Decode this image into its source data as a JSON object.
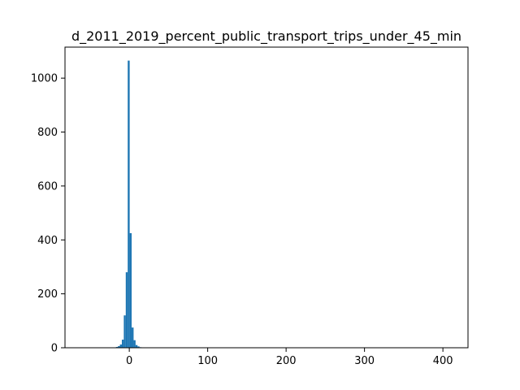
{
  "chart_data": {
    "type": "bar",
    "title": "d_2011_2019_percent_public_transport_trips_under_45_min",
    "xlabel": "",
    "ylabel": "",
    "xlim": [
      -82,
      432
    ],
    "ylim": [
      0,
      1115
    ],
    "x_ticks": [
      0,
      100,
      200,
      300,
      400
    ],
    "x_tick_labels": [
      "0",
      "100",
      "200",
      "300",
      "400"
    ],
    "y_ticks": [
      0,
      200,
      400,
      600,
      800,
      1000
    ],
    "y_tick_labels": [
      "0",
      "200",
      "400",
      "600",
      "800",
      "1000"
    ],
    "bin_width": 2.5,
    "bins": [
      {
        "x0": -17,
        "count": 3
      },
      {
        "x0": -14.5,
        "count": 6
      },
      {
        "x0": -12,
        "count": 12
      },
      {
        "x0": -9.5,
        "count": 30
      },
      {
        "x0": -7,
        "count": 120
      },
      {
        "x0": -4.5,
        "count": 280
      },
      {
        "x0": -2,
        "count": 1065
      },
      {
        "x0": 0.5,
        "count": 425
      },
      {
        "x0": 3,
        "count": 75
      },
      {
        "x0": 5.5,
        "count": 28
      },
      {
        "x0": 8,
        "count": 10
      },
      {
        "x0": 10.5,
        "count": 5
      },
      {
        "x0": 13,
        "count": 2
      }
    ],
    "bar_color": "#1f77b4",
    "grid": false
  }
}
